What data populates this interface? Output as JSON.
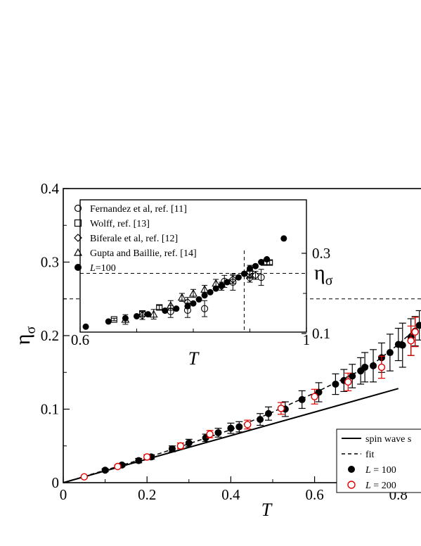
{
  "chart_data": [
    {
      "type": "scatter",
      "name": "main",
      "xlabel": "T",
      "ylabel": "η",
      "ylabel_sub": "σ",
      "xlim": [
        0,
        0.85
      ],
      "ylim": [
        0,
        0.4
      ],
      "xticks": [
        {
          "v": 0,
          "label": "0"
        },
        {
          "v": 0.2,
          "label": "0.2"
        },
        {
          "v": 0.4,
          "label": "0.4"
        },
        {
          "v": 0.6,
          "label": "0.6"
        },
        {
          "v": 0.8,
          "label": "0.8"
        }
      ],
      "yticks": [
        {
          "v": 0,
          "label": "0"
        },
        {
          "v": 0.1,
          "label": "0.1"
        },
        {
          "v": 0.2,
          "label": "0.2"
        },
        {
          "v": 0.3,
          "label": "0.3"
        },
        {
          "v": 0.4,
          "label": "0.4"
        }
      ],
      "hline": 0.25,
      "legend": {
        "placement": "bottom-right",
        "entries": [
          "spin wave s",
          "fit",
          "L = 100",
          "L = 200"
        ]
      },
      "series": [
        {
          "name": "spin wave s",
          "kind": "line",
          "dash": false,
          "color": "#000000",
          "points": [
            [
              0,
              0
            ],
            [
              0.8,
              0.128
            ]
          ]
        },
        {
          "name": "fit",
          "kind": "line",
          "dash": true,
          "color": "#000000",
          "points": [
            [
              0,
              0
            ],
            [
              0.2,
              0.034
            ],
            [
              0.4,
              0.072
            ],
            [
              0.5,
              0.096
            ],
            [
              0.6,
              0.122
            ],
            [
              0.7,
              0.15
            ],
            [
              0.75,
              0.166
            ],
            [
              0.8,
              0.188
            ],
            [
              0.85,
              0.214
            ]
          ]
        },
        {
          "name": "L = 100",
          "kind": "points",
          "marker": "filled-circle",
          "color": "#000000",
          "points": [
            [
              0.1,
              0.017,
              0.002
            ],
            [
              0.14,
              0.024,
              0.002
            ],
            [
              0.18,
              0.03,
              0.003
            ],
            [
              0.21,
              0.035,
              0.003
            ],
            [
              0.26,
              0.046,
              0.004
            ],
            [
              0.3,
              0.054,
              0.005
            ],
            [
              0.34,
              0.061,
              0.005
            ],
            [
              0.37,
              0.068,
              0.006
            ],
            [
              0.4,
              0.074,
              0.007
            ],
            [
              0.42,
              0.076,
              0.007
            ],
            [
              0.47,
              0.086,
              0.008
            ],
            [
              0.49,
              0.094,
              0.009
            ],
            [
              0.53,
              0.1,
              0.01
            ],
            [
              0.57,
              0.113,
              0.012
            ],
            [
              0.61,
              0.123,
              0.013
            ],
            [
              0.65,
              0.134,
              0.014
            ],
            [
              0.67,
              0.139,
              0.015
            ],
            [
              0.69,
              0.145,
              0.016
            ],
            [
              0.71,
              0.152,
              0.018
            ],
            [
              0.72,
              0.157,
              0.02
            ],
            [
              0.74,
              0.159,
              0.022
            ],
            [
              0.76,
              0.17,
              0.02
            ],
            [
              0.78,
              0.177,
              0.025
            ],
            [
              0.8,
              0.188,
              0.022
            ],
            [
              0.81,
              0.187,
              0.03
            ],
            [
              0.83,
              0.198,
              0.025
            ],
            [
              0.84,
              0.206,
              0.02
            ],
            [
              0.85,
              0.214,
              0.02
            ]
          ]
        },
        {
          "name": "L = 200",
          "kind": "points",
          "marker": "open-circle",
          "color": "#e00000",
          "points": [
            [
              0.05,
              0.008,
              0.001
            ],
            [
              0.13,
              0.022,
              0.002
            ],
            [
              0.2,
              0.035,
              0.003
            ],
            [
              0.28,
              0.05,
              0.004
            ],
            [
              0.35,
              0.066,
              0.005
            ],
            [
              0.44,
              0.079,
              0.006
            ],
            [
              0.52,
              0.101,
              0.008
            ],
            [
              0.6,
              0.117,
              0.01
            ],
            [
              0.68,
              0.137,
              0.012
            ],
            [
              0.76,
              0.157,
              0.015
            ],
            [
              0.83,
              0.193,
              0.02
            ],
            [
              0.84,
              0.205,
              0.02
            ]
          ]
        }
      ]
    },
    {
      "type": "scatter",
      "name": "inset",
      "xlabel": "T",
      "ylabel": "η",
      "ylabel_sub": "σ",
      "xlim": [
        0.6,
        1.0
      ],
      "ylim": [
        0.1,
        0.35
      ],
      "xticks": [
        {
          "v": 0.6,
          "label": "0.6"
        },
        {
          "v": 1.0,
          "label": "1"
        }
      ],
      "yticks": [
        {
          "v": 0.1,
          "label": "0.1"
        },
        {
          "v": 0.3,
          "label": "0.3"
        }
      ],
      "hline": 0.25,
      "vline": 0.89,
      "legend": {
        "placement": "top-left",
        "entries": [
          "Fernandez et al, ref. [11]",
          "Wolff, ref. [13]",
          "Biferale et al, ref. [12]",
          "Gupta and Baillie, ref. [14]",
          "L=100"
        ]
      },
      "series": [
        {
          "name": "Fernandez et al, ref. [11]",
          "marker": "open-circle",
          "points": [
            [
              0.76,
              0.155,
              0.015
            ],
            [
              0.79,
              0.158,
              0.018
            ],
            [
              0.82,
              0.162,
              0.02
            ],
            [
              0.855,
              0.23,
              0.015
            ],
            [
              0.87,
              0.228,
              0.02
            ],
            [
              0.9,
              0.255,
              0.015
            ],
            [
              0.92,
              0.24,
              0.02
            ]
          ]
        },
        {
          "name": "Wolff, ref. [13]",
          "marker": "open-square",
          "points": [
            [
              0.66,
              0.135,
              0.003
            ],
            [
              0.71,
              0.15,
              0.004
            ],
            [
              0.74,
              0.165,
              0.005
            ],
            [
              0.9,
              0.248,
              0.01
            ],
            [
              0.925,
              0.277,
              0.005
            ],
            [
              0.935,
              0.277,
              0.005
            ]
          ]
        },
        {
          "name": "Biferale et al, ref. [12]",
          "marker": "open-diamond",
          "points": [
            [
              0.71,
              0.145,
              0.01
            ],
            [
              0.79,
              0.178,
              0.012
            ],
            [
              0.85,
              0.218,
              0.01
            ],
            [
              0.87,
              0.235,
              0.01
            ],
            [
              0.9,
              0.238,
              0.01
            ],
            [
              0.91,
              0.245,
              0.01
            ]
          ]
        },
        {
          "name": "Gupta and Baillie, ref. [14]",
          "marker": "open-triangle",
          "points": [
            [
              0.68,
              0.135,
              0.012
            ],
            [
              0.73,
              0.148,
              0.012
            ],
            [
              0.76,
              0.17,
              0.012
            ],
            [
              0.78,
              0.19,
              0.01
            ],
            [
              0.8,
              0.2,
              0.01
            ],
            [
              0.82,
              0.21,
              0.01
            ],
            [
              0.84,
              0.225,
              0.01
            ]
          ]
        },
        {
          "name": "L=100",
          "marker": "filled-circle",
          "points": [
            [
              0.61,
              0.117
            ],
            [
              0.65,
              0.13
            ],
            [
              0.68,
              0.138
            ],
            [
              0.7,
              0.143
            ],
            [
              0.72,
              0.148
            ],
            [
              0.75,
              0.157
            ],
            [
              0.77,
              0.162
            ],
            [
              0.79,
              0.168
            ],
            [
              0.8,
              0.175
            ],
            [
              0.81,
              0.185
            ],
            [
              0.82,
              0.195
            ],
            [
              0.83,
              0.203
            ],
            [
              0.84,
              0.212
            ],
            [
              0.85,
              0.22
            ],
            [
              0.86,
              0.228
            ],
            [
              0.88,
              0.24
            ],
            [
              0.89,
              0.249
            ],
            [
              0.9,
              0.262
            ],
            [
              0.91,
              0.268
            ],
            [
              0.92,
              0.278
            ],
            [
              0.93,
              0.285
            ],
            [
              0.96,
              0.337
            ]
          ]
        }
      ]
    }
  ]
}
